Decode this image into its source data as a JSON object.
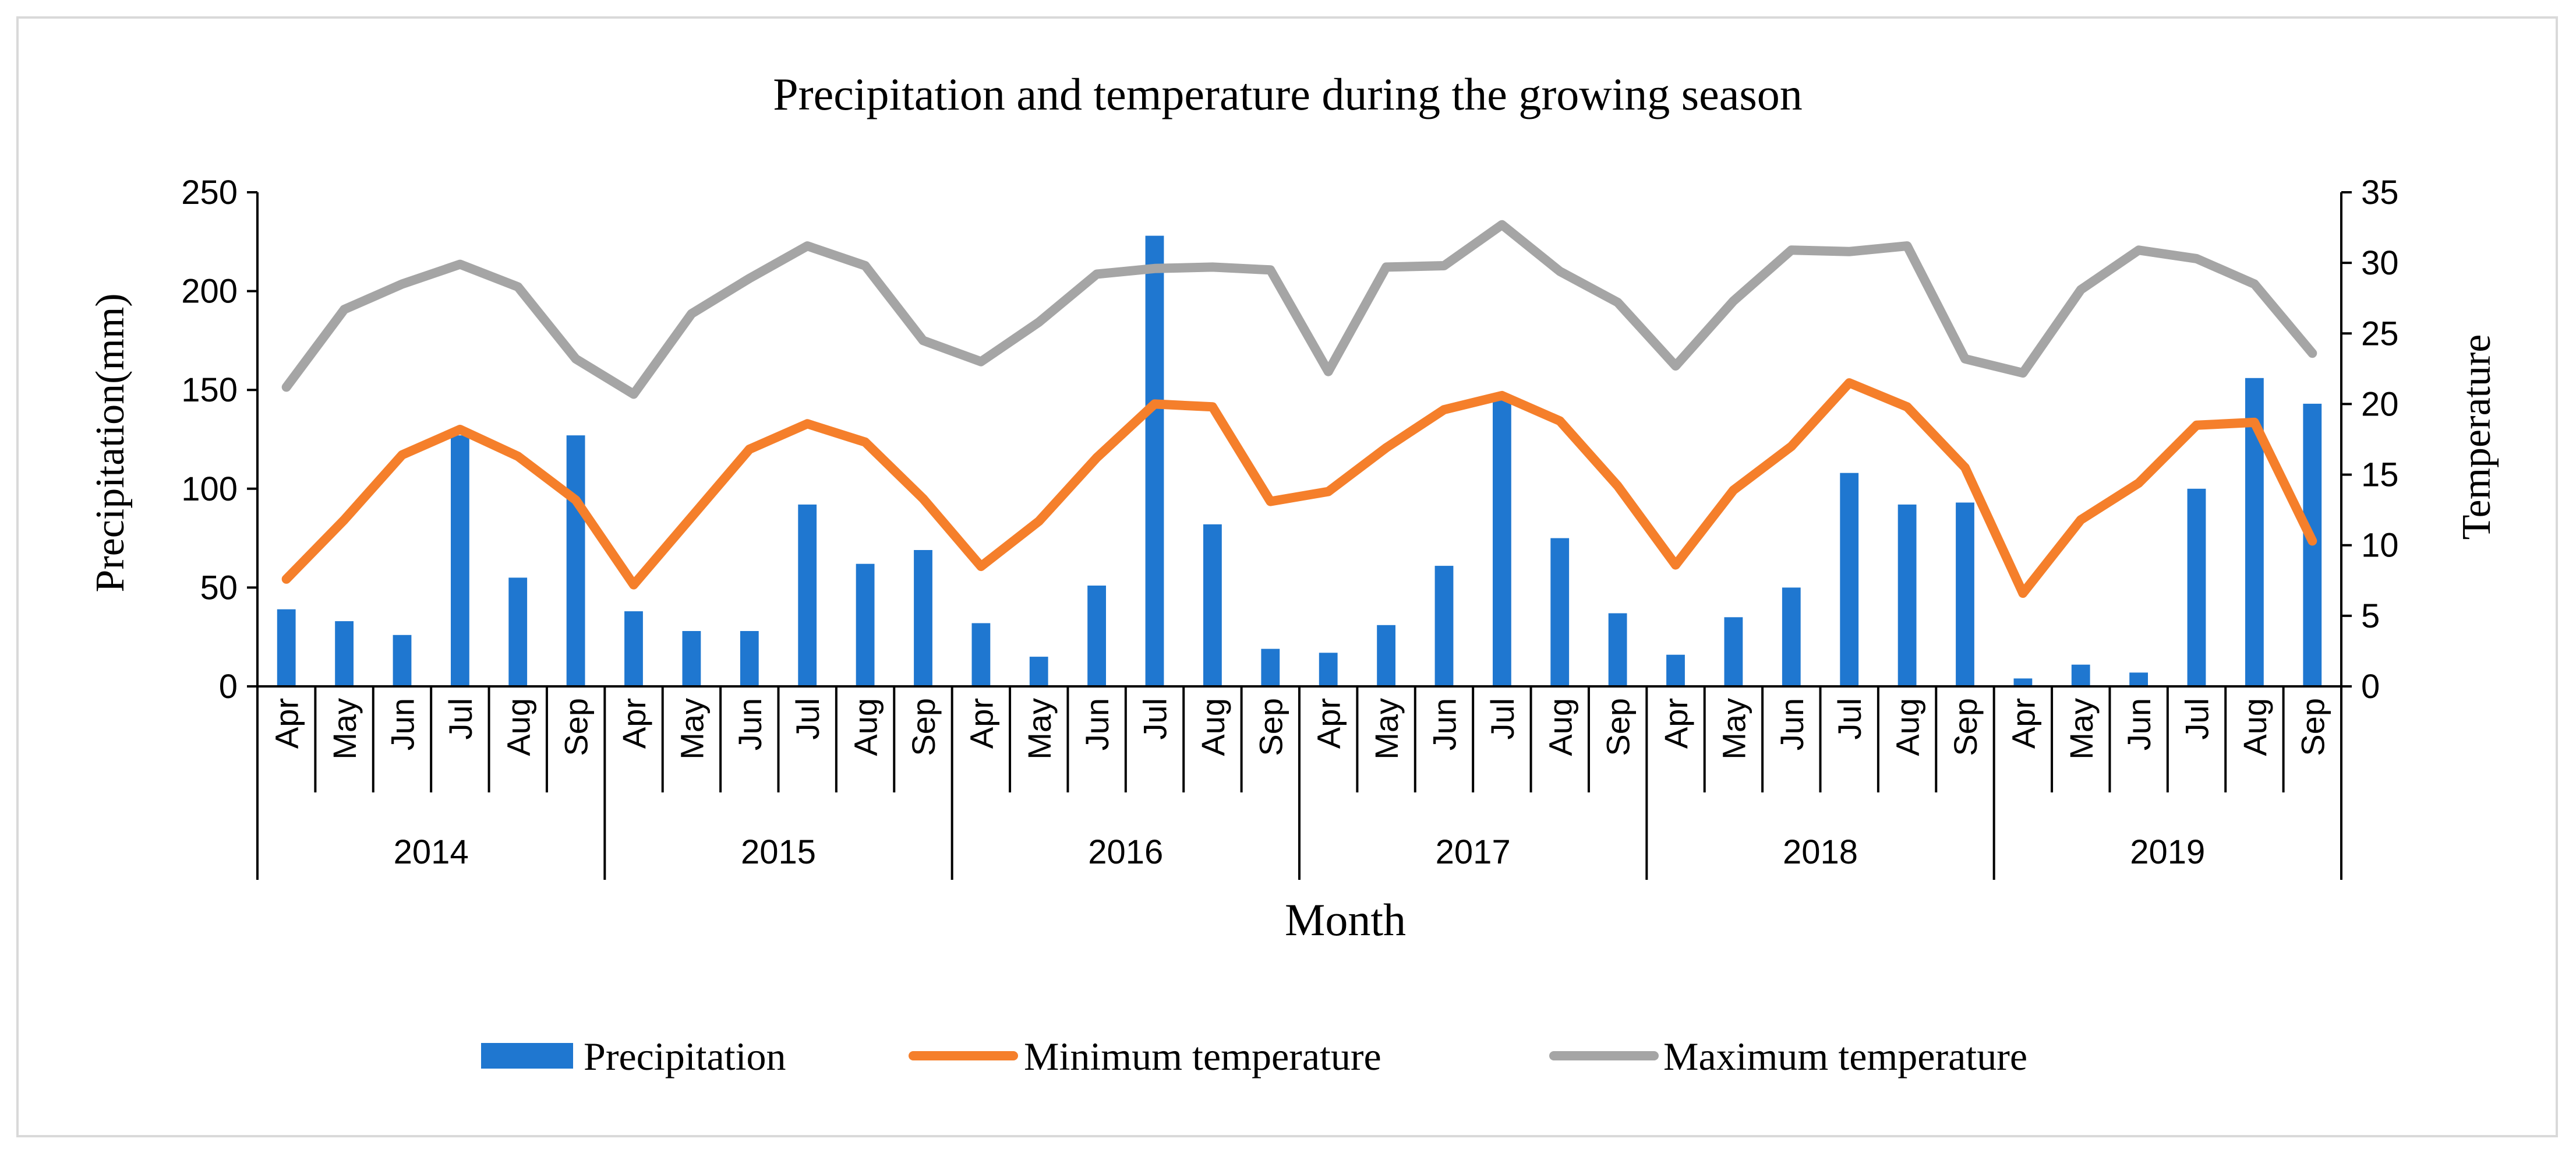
{
  "chart_data": {
    "type": "bar",
    "title": "Precipitation and temperature during the growing season",
    "xlabel": "Month",
    "ylabel": "Precipitation(mm)",
    "y2label": "Temperature",
    "ylim": [
      0,
      250
    ],
    "y2lim": [
      0,
      35
    ],
    "yticks": [
      0,
      50,
      100,
      150,
      200,
      250
    ],
    "y2ticks": [
      0,
      5,
      10,
      15,
      20,
      25,
      30,
      35
    ],
    "months": [
      "Apr",
      "May",
      "Jun",
      "Jul",
      "Aug",
      "Sep"
    ],
    "years": [
      "2014",
      "2015",
      "2016",
      "2017",
      "2018",
      "2019"
    ],
    "legend_position": "bottom",
    "series": [
      {
        "name": "Precipitation",
        "kind": "bar",
        "axis": "left",
        "color": "#1F77D0",
        "values": [
          39,
          33,
          26,
          127,
          55,
          127,
          38,
          28,
          28,
          92,
          62,
          69,
          32,
          15,
          51,
          228,
          82,
          19,
          17,
          31,
          61,
          146,
          75,
          37,
          16,
          35,
          50,
          108,
          92,
          93,
          4,
          11,
          7,
          100,
          156,
          143
        ]
      },
      {
        "name": "Minimum temperature",
        "kind": "line",
        "axis": "right",
        "color": "#F57F2B",
        "values": [
          7.6,
          11.8,
          16.4,
          18.2,
          16.3,
          13.2,
          7.2,
          12.0,
          16.8,
          18.6,
          17.3,
          13.3,
          8.5,
          11.7,
          16.2,
          20.0,
          19.8,
          13.1,
          13.8,
          16.9,
          19.6,
          20.6,
          18.8,
          14.2,
          8.6,
          13.9,
          17.0,
          21.5,
          19.8,
          15.5,
          6.6,
          11.8,
          14.4,
          18.5,
          18.7,
          10.3
        ]
      },
      {
        "name": "Maximum temperature",
        "kind": "line",
        "axis": "right",
        "color": "#A5A5A5",
        "values": [
          21.2,
          26.7,
          28.5,
          29.9,
          28.3,
          23.2,
          20.7,
          26.4,
          28.9,
          31.2,
          29.8,
          24.5,
          23.0,
          25.8,
          29.2,
          29.6,
          29.7,
          29.5,
          22.3,
          29.7,
          29.8,
          32.7,
          29.4,
          27.2,
          22.7,
          27.3,
          30.9,
          30.8,
          31.2,
          23.2,
          22.2,
          28.1,
          30.9,
          30.3,
          28.5,
          23.6
        ]
      }
    ]
  }
}
